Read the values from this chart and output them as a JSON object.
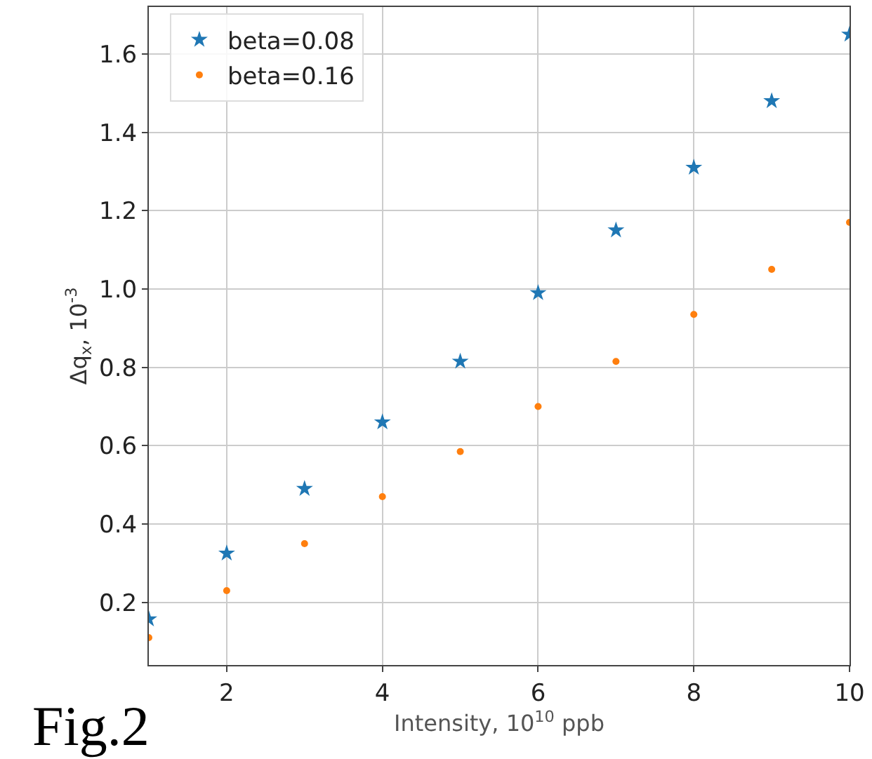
{
  "chart_data": {
    "type": "scatter",
    "xlabel": "Intensity, 10$^{10}$ ppb",
    "ylabel": "Δq$_{x}$, 10$^{-3}$",
    "annotations": [
      "Fig.2"
    ],
    "x": [
      1,
      2,
      3,
      4,
      5,
      6,
      7,
      8,
      9,
      10
    ],
    "series": [
      {
        "name": "beta=0.08",
        "color": "#1f77b4",
        "marker": "star",
        "values": [
          0.157,
          0.325,
          0.49,
          0.66,
          0.815,
          0.99,
          1.15,
          1.31,
          1.48,
          1.65
        ]
      },
      {
        "name": "beta=0.16",
        "color": "#ff7f0e",
        "marker": "circle",
        "values": [
          0.11,
          0.23,
          0.35,
          0.47,
          0.585,
          0.7,
          0.815,
          0.935,
          1.05,
          1.17
        ]
      }
    ],
    "xlim": [
      1,
      10
    ],
    "xticks": [
      2,
      4,
      6,
      8,
      10
    ],
    "ylim": [
      0.04,
      1.72
    ],
    "yticks": [
      0.2,
      0.4,
      0.6,
      0.8,
      {
        "value": 1,
        "label": "1.0"
      },
      1.2,
      1.4,
      1.6
    ],
    "grid": true,
    "legend": "top left"
  }
}
